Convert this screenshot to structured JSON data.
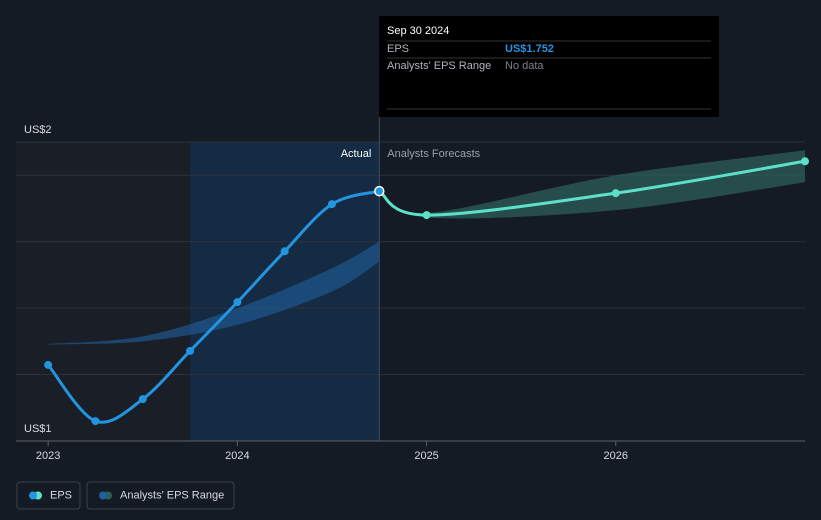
{
  "chart_data": {
    "type": "line",
    "xlim": [
      2022.83,
      2027.0
    ],
    "xticks": [
      2023,
      2024,
      2025,
      2026
    ],
    "ylim": [
      1.0,
      1.9
    ],
    "yticks": [
      {
        "value": 1.0,
        "label": "US$1"
      },
      {
        "value": 1.9,
        "label": "US$2"
      }
    ],
    "gridlines": [
      1.2,
      1.4,
      1.6,
      1.8
    ],
    "region_labels": [
      "Actual",
      "Analysts Forecasts"
    ],
    "series": [
      {
        "name": "EPS",
        "color": "#2394df",
        "x": [
          2023.0,
          2023.25,
          2023.5,
          2023.75,
          2024.0,
          2024.25,
          2024.5,
          2024.75
        ],
        "values": [
          1.229,
          1.06,
          1.126,
          1.271,
          1.418,
          1.571,
          1.713,
          1.752
        ]
      },
      {
        "color": "#5ce1c9",
        "x": [
          2024.75,
          2025.0,
          2026.0,
          2027.0
        ],
        "values": [
          1.752,
          1.68,
          1.746,
          1.842
        ]
      }
    ],
    "range": {
      "name": "Analysts' EPS Range",
      "colors": [
        "#1f5f9c",
        "#2e5e5a"
      ],
      "x": [
        2023.0,
        2023.5,
        2024.0,
        2024.5,
        2024.75,
        null,
        2024.75,
        2025.0,
        2026.0,
        2027.0
      ],
      "low": [
        1.29,
        1.3,
        1.35,
        1.45,
        1.54,
        null,
        1.752,
        1.673,
        1.695,
        1.779
      ],
      "high": [
        1.292,
        1.315,
        1.4,
        1.52,
        1.6,
        null,
        1.752,
        1.686,
        1.8,
        1.875
      ]
    },
    "tooltip": {
      "date": "Sep 30 2024",
      "rows": [
        {
          "label": "EPS",
          "value": "US$1.752"
        },
        {
          "label": "Analysts' EPS Range",
          "value": "No data"
        }
      ]
    }
  }
}
